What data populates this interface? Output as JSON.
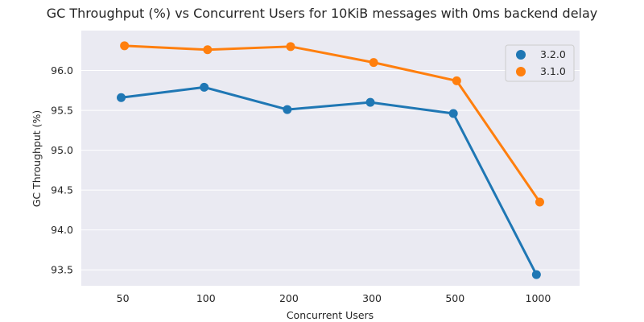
{
  "chart_data": {
    "type": "line",
    "title": "GC Throughput (%) vs Concurrent Users for 10KiB messages with 0ms backend delay",
    "xlabel": "Concurrent Users",
    "ylabel": "GC Throughput (%)",
    "categories": [
      "50",
      "100",
      "200",
      "300",
      "500",
      "1000"
    ],
    "ylim": [
      93.3,
      96.5
    ],
    "yticks": [
      "93.5",
      "94.0",
      "94.5",
      "95.0",
      "95.5",
      "96.0"
    ],
    "grid": true,
    "legend_position": "top-right",
    "series": [
      {
        "name": "3.2.0",
        "color": "#1f77b4",
        "values": [
          95.66,
          95.79,
          95.51,
          95.6,
          95.46,
          93.44
        ]
      },
      {
        "name": "3.1.0",
        "color": "#ff7f0e",
        "values": [
          96.31,
          96.26,
          96.3,
          96.1,
          95.87,
          94.35
        ]
      }
    ]
  }
}
